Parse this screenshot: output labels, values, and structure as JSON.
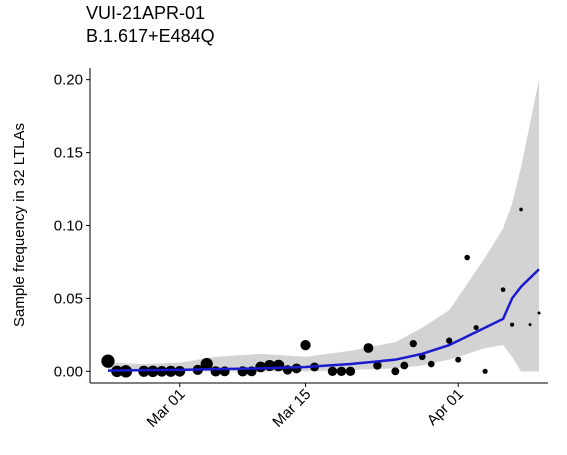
{
  "chart_data": {
    "type": "scatter",
    "title": [
      "VUI-21APR-01",
      "B.1.617+E484Q"
    ],
    "y_label": "Sample frequency in 32 LTLAs",
    "xlim": [
      "Feb 19",
      "Apr 11"
    ],
    "xticks": [
      "Mar 01",
      "Mar 15",
      "Apr 01"
    ],
    "ylim": [
      -0.008,
      0.208
    ],
    "yticks": [
      {
        "value": 0,
        "label": "0.00"
      },
      {
        "value": 0.05,
        "label": "0.05"
      },
      {
        "value": 0.1,
        "label": "0.10"
      },
      {
        "value": 0.15,
        "label": "0.15"
      },
      {
        "value": 0.2,
        "label": "0.20"
      }
    ],
    "points": {
      "color": "#000000",
      "x": [
        "Feb 21",
        "Feb 22",
        "Feb 23",
        "Feb 25",
        "Feb 26",
        "Feb 27",
        "Feb 28",
        "Mar 01",
        "Mar 03",
        "Mar 04",
        "Mar 05",
        "Mar 06",
        "Mar 08",
        "Mar 09",
        "Mar 10",
        "Mar 11",
        "Mar 12",
        "Mar 13",
        "Mar 14",
        "Mar 15",
        "Mar 16",
        "Mar 18",
        "Mar 19",
        "Mar 20",
        "Mar 22",
        "Mar 23",
        "Mar 25",
        "Mar 26",
        "Mar 27",
        "Mar 28",
        "Mar 29",
        "Mar 31",
        "Apr 01",
        "Apr 02",
        "Apr 03",
        "Apr 04",
        "Apr 06",
        "Apr 07",
        "Apr 08",
        "Apr 09",
        "Apr 10"
      ],
      "values": [
        0.007,
        0,
        0,
        0,
        0,
        0,
        0,
        0,
        0.001,
        0.005,
        0,
        0,
        0,
        0,
        0.003,
        0.004,
        0.004,
        0.001,
        0.002,
        0.018,
        0.003,
        0,
        0,
        0,
        0.016,
        0.004,
        0,
        0.004,
        0.019,
        0.01,
        0.005,
        0.021,
        0.008,
        0.078,
        0.03,
        0,
        0.056,
        0.032,
        0.111,
        0.032,
        0.04
      ],
      "sizes": [
        40,
        30,
        35,
        28,
        30,
        26,
        28,
        26,
        24,
        34,
        24,
        22,
        24,
        22,
        26,
        28,
        30,
        20,
        22,
        24,
        18,
        20,
        20,
        20,
        22,
        16,
        14,
        14,
        12,
        10,
        10,
        9,
        8,
        7,
        6,
        6,
        5,
        4,
        3,
        2,
        2
      ]
    },
    "trend": {
      "color": "#1a1ad0",
      "band_color": "#d3d3d3",
      "x": [
        "Feb 21",
        "Feb 25",
        "Mar 01",
        "Mar 05",
        "Mar 10",
        "Mar 15",
        "Mar 20",
        "Mar 25",
        "Mar 28",
        "Mar 31",
        "Apr 02",
        "Apr 04",
        "Apr 06",
        "Apr 07",
        "Apr 08",
        "Apr 10"
      ],
      "values": [
        0.0005,
        0.0008,
        0.001,
        0.0015,
        0.002,
        0.003,
        0.005,
        0.008,
        0.012,
        0.018,
        0.024,
        0.03,
        0.036,
        0.05,
        0.058,
        0.07
      ],
      "lower": [
        0,
        0,
        0,
        0,
        0,
        0,
        0.001,
        0.002,
        0.004,
        0.008,
        0.012,
        0.016,
        0.018,
        0.01,
        0,
        0
      ],
      "upper": [
        0.006,
        0.005,
        0.006,
        0.01,
        0.012,
        0.01,
        0.014,
        0.02,
        0.03,
        0.042,
        0.06,
        0.078,
        0.098,
        0.115,
        0.14,
        0.2
      ]
    }
  }
}
